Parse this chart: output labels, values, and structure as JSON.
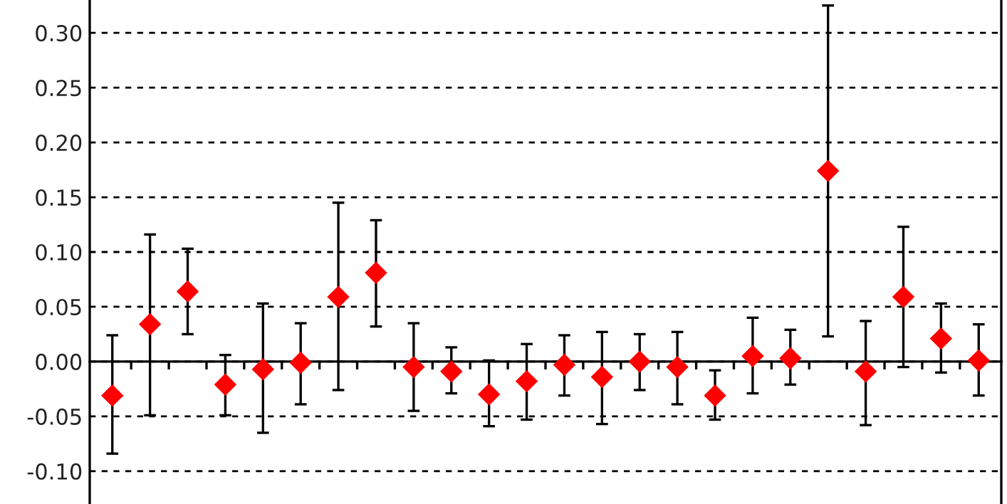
{
  "chart_data": {
    "type": "scatter",
    "categories": [
      null,
      null,
      null,
      null,
      null,
      null,
      null,
      null,
      null,
      null,
      null,
      null,
      null,
      null,
      null,
      null,
      null,
      null,
      null,
      null,
      null,
      null,
      null,
      null
    ],
    "series": [
      {
        "color": "#ff0000",
        "values": [
          -0.031,
          0.034,
          0.064,
          -0.021,
          -0.007,
          -0.001,
          0.059,
          0.081,
          -0.005,
          -0.009,
          -0.03,
          -0.018,
          -0.003,
          -0.014,
          0.0,
          -0.005,
          -0.031,
          0.005,
          0.003,
          0.174,
          -0.009,
          0.059,
          0.021,
          0.001
        ],
        "errors": [
          [
            -0.084,
            0.024
          ],
          [
            -0.049,
            0.116
          ],
          [
            0.025,
            0.103
          ],
          [
            -0.049,
            0.006
          ],
          [
            -0.065,
            0.053
          ],
          [
            -0.039,
            0.035
          ],
          [
            -0.026,
            0.145
          ],
          [
            0.032,
            0.129
          ],
          [
            -0.045,
            0.035
          ],
          [
            -0.029,
            0.013
          ],
          [
            -0.059,
            0.001
          ],
          [
            -0.053,
            0.016
          ],
          [
            -0.031,
            0.024
          ],
          [
            -0.057,
            0.027
          ],
          [
            -0.026,
            0.025
          ],
          [
            -0.039,
            0.027
          ],
          [
            -0.053,
            -0.008
          ],
          [
            -0.029,
            0.04
          ],
          [
            -0.021,
            0.029
          ],
          [
            0.023,
            0.325
          ],
          [
            -0.058,
            0.037
          ],
          [
            -0.005,
            0.123
          ],
          [
            -0.01,
            0.053
          ],
          [
            -0.031,
            0.034
          ]
        ]
      }
    ],
    "ylim": [
      -0.13,
      0.33
    ],
    "yticks": [
      {
        "value": -0.1,
        "label": "-0.10"
      },
      {
        "value": -0.05,
        "label": "-0.05"
      },
      {
        "value": 0,
        "label": "0.00"
      },
      {
        "value": 0.05,
        "label": "0.05"
      },
      {
        "value": 0.1,
        "label": "0.10"
      },
      {
        "value": 0.15,
        "label": "0.15"
      },
      {
        "value": 0.2,
        "label": "0.20"
      },
      {
        "value": 0.25,
        "label": "0.25"
      },
      {
        "value": 0.3,
        "label": "0.30"
      }
    ],
    "grid": "y",
    "marker": "diamond",
    "tick_labels": "y",
    "legend": false
  }
}
